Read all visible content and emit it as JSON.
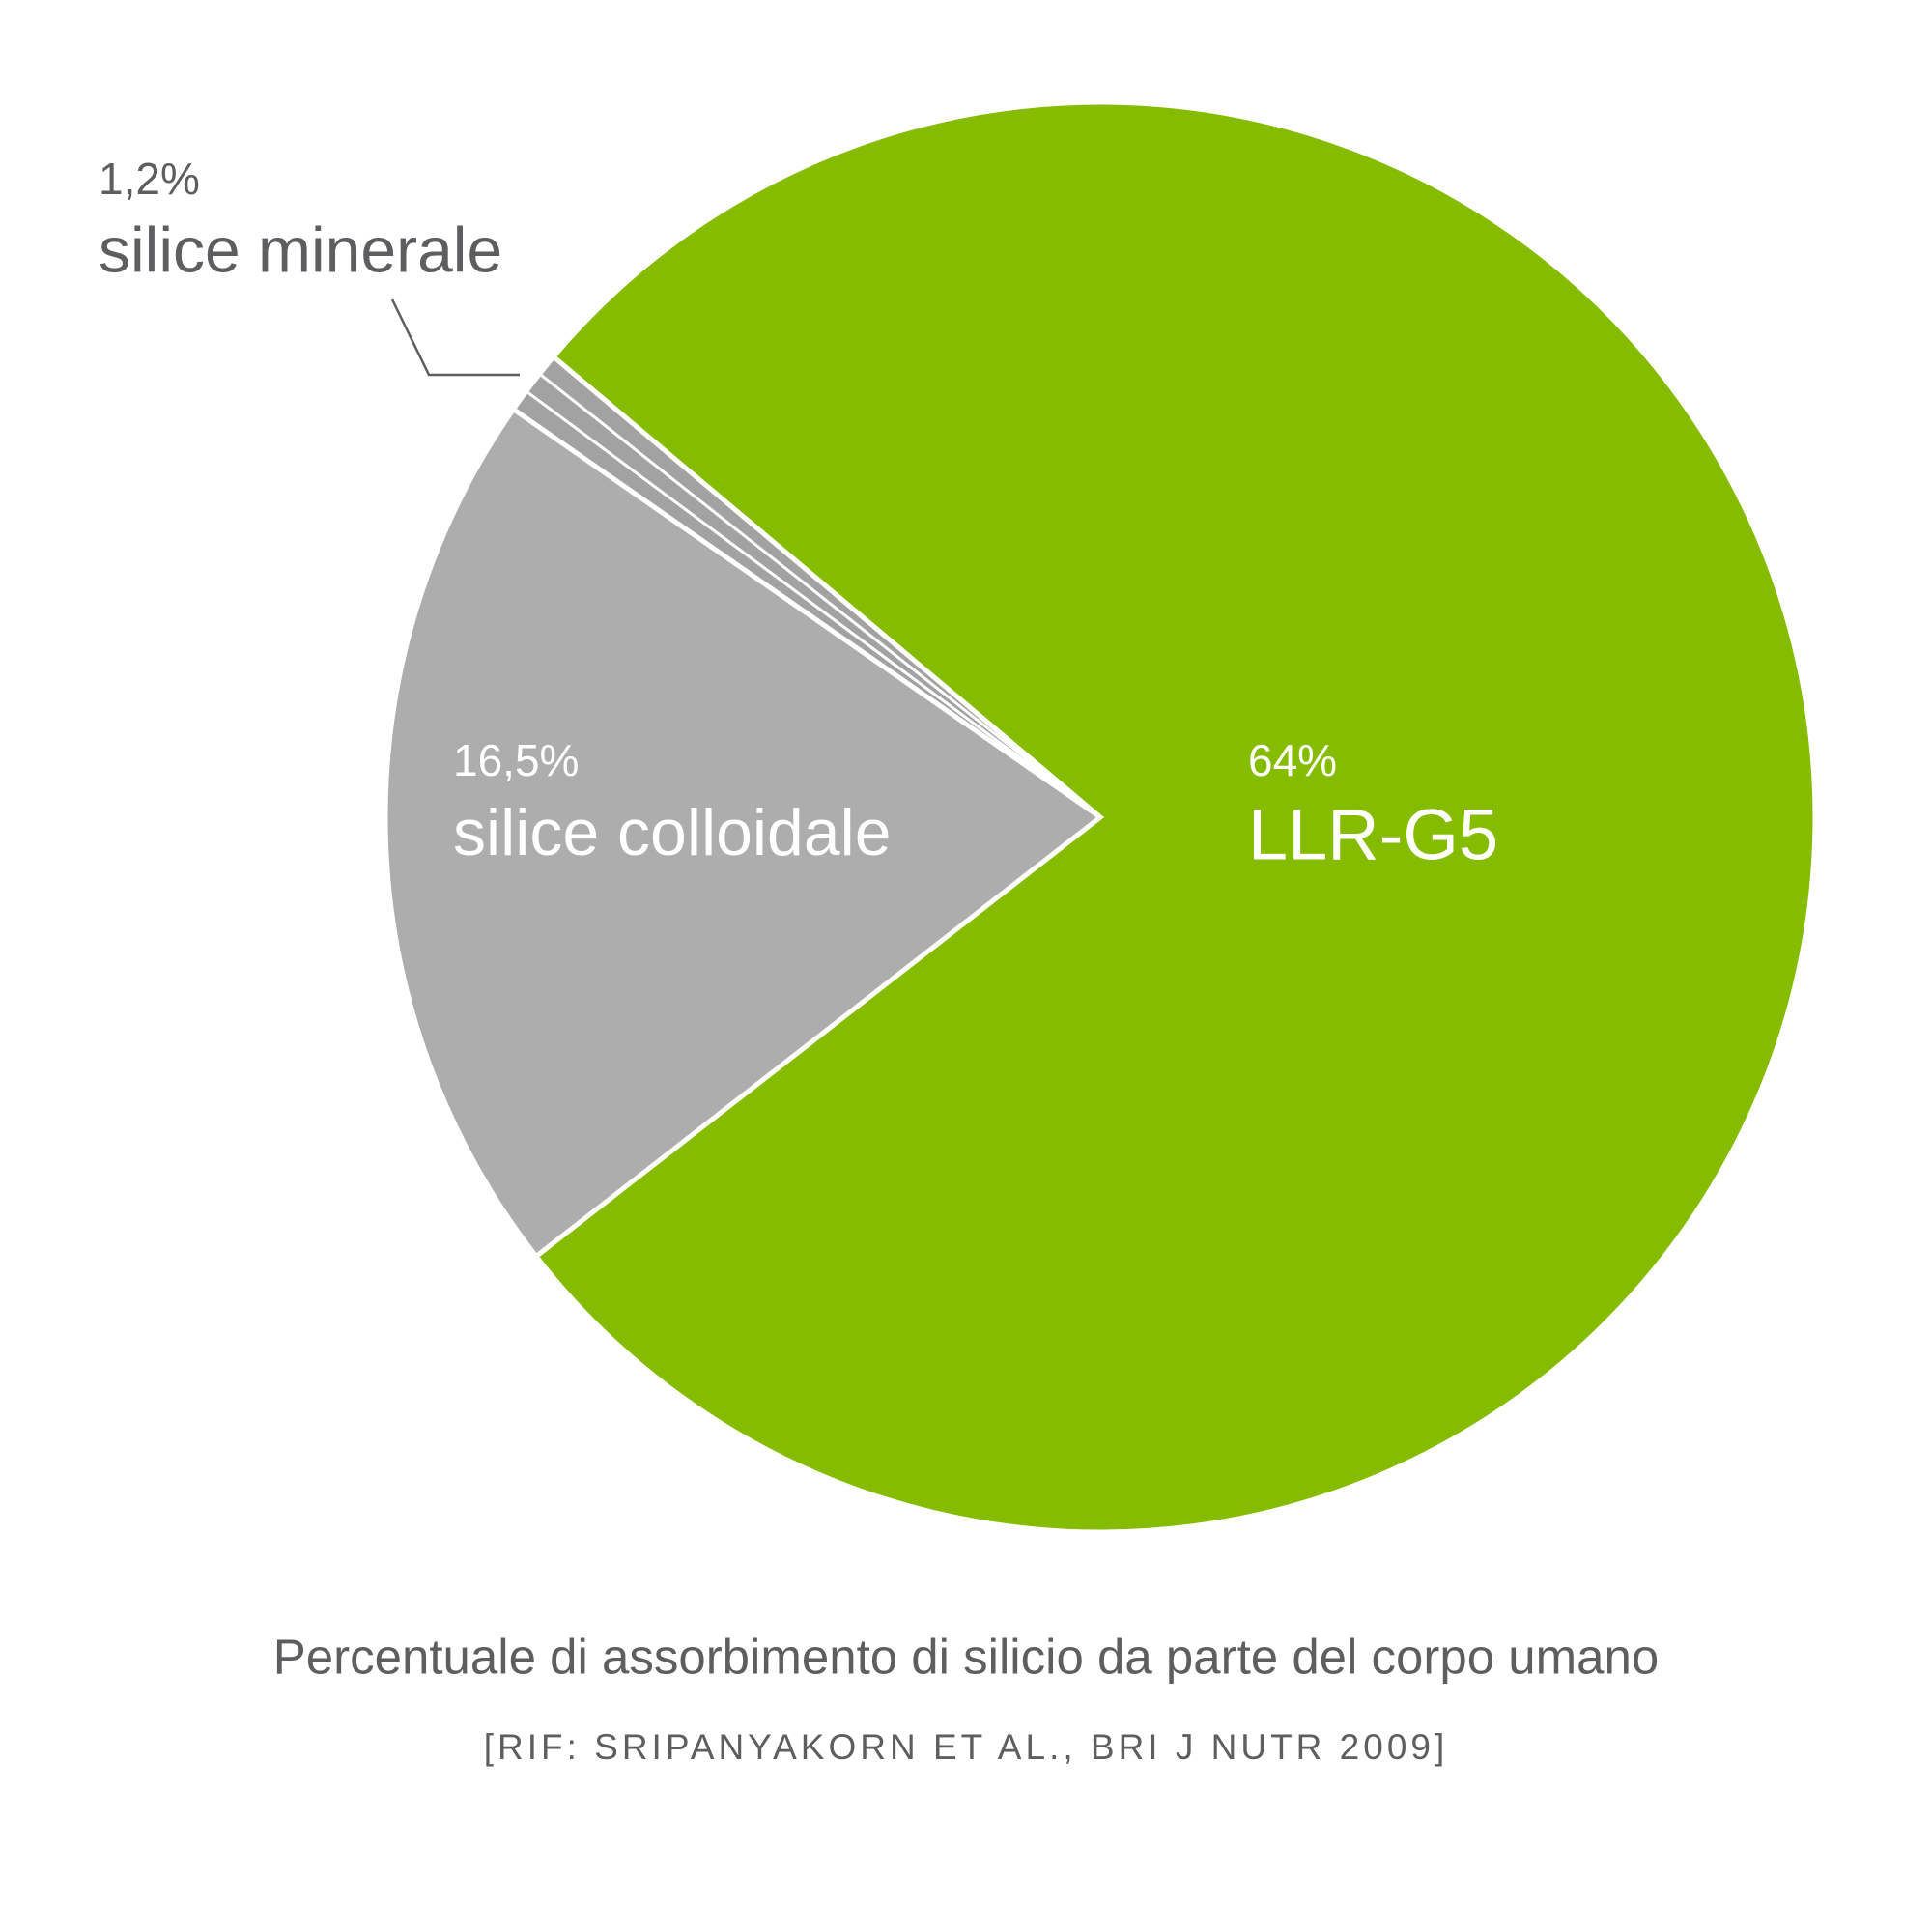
{
  "chart_data": {
    "type": "pie",
    "title": "Percentuale di assorbimento di silicio da parte del corpo umano",
    "subtitle": "[RIF: SRIPANYAKORN ET AL., BRI J NUTR 2009]",
    "categories": [
      "LLR-G5",
      "silice colloidale",
      "silice minerale"
    ],
    "values": [
      64,
      16.5,
      1.2
    ],
    "value_labels": [
      "64%",
      "16,5%",
      "1,2%"
    ],
    "colors": [
      "#86bc00",
      "#aeadae",
      "#a3a2a3"
    ]
  }
}
